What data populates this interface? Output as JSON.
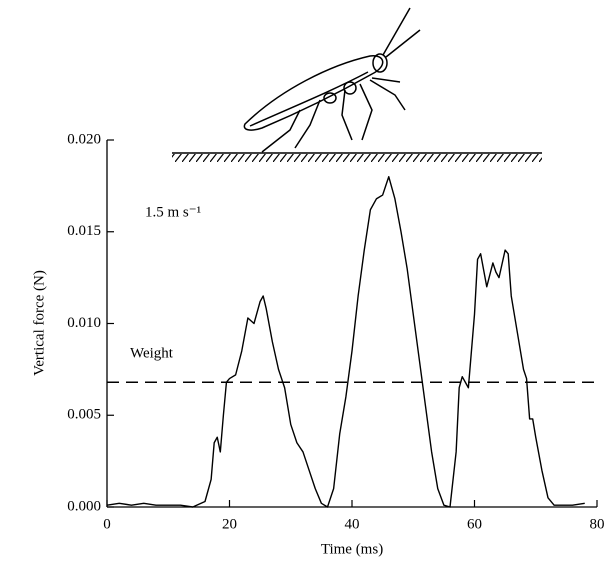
{
  "chart_data": {
    "type": "line",
    "x_label": "Time (ms)",
    "y_label": "Vertical force (N)",
    "annotation": "1.5 m s⁻¹",
    "reference_line": {
      "label": "Weight",
      "value": 0.0068
    },
    "x": [
      0,
      2,
      4,
      6,
      8,
      10,
      12,
      14,
      16,
      17,
      17.5,
      18,
      18.5,
      19,
      19.5,
      20,
      21,
      22,
      23,
      24,
      25,
      25.5,
      26,
      27,
      28,
      29,
      30,
      31,
      32,
      33,
      34,
      35,
      36,
      37,
      38,
      39,
      40,
      41,
      42,
      43,
      44,
      45,
      45.5,
      46,
      47,
      48,
      49,
      50,
      51,
      52,
      53,
      54,
      55,
      56,
      57,
      57.5,
      58,
      59,
      60,
      60.5,
      61,
      62,
      63,
      63.5,
      64,
      65,
      65.5,
      66,
      67,
      68,
      68.5,
      69,
      69.5,
      70,
      71,
      72,
      73,
      76,
      78
    ],
    "series": [
      {
        "color": "#000000",
        "values": [
          0.0001,
          0.0002,
          0.0001,
          0.0002,
          0.0001,
          0.0001,
          0.0001,
          0.0,
          0.0003,
          0.0015,
          0.0035,
          0.0038,
          0.003,
          0.005,
          0.0068,
          0.007,
          0.0072,
          0.0085,
          0.0103,
          0.01,
          0.0112,
          0.0115,
          0.0108,
          0.009,
          0.0075,
          0.0065,
          0.0045,
          0.0035,
          0.003,
          0.002,
          0.001,
          0.0002,
          0.0,
          0.001,
          0.004,
          0.006,
          0.0085,
          0.0115,
          0.014,
          0.0162,
          0.0168,
          0.017,
          0.0175,
          0.018,
          0.0168,
          0.015,
          0.013,
          0.0105,
          0.008,
          0.0055,
          0.003,
          0.001,
          0.0001,
          0.0,
          0.003,
          0.0065,
          0.0071,
          0.0065,
          0.0105,
          0.0135,
          0.0138,
          0.012,
          0.0133,
          0.0128,
          0.0125,
          0.014,
          0.0138,
          0.0115,
          0.0095,
          0.0075,
          0.007,
          0.0048,
          0.0048,
          0.0038,
          0.002,
          0.0005,
          0.0001,
          0.0001,
          0.0002
        ]
      }
    ],
    "xlim": [
      0,
      80
    ],
    "xticks": [
      0,
      20,
      40,
      60,
      80
    ],
    "ylim": [
      0,
      0.02
    ],
    "yticks": [
      {
        "value": 0,
        "label": "0.000"
      },
      {
        "value": 0.005,
        "label": "0.005"
      },
      {
        "value": 0.01,
        "label": "0.010"
      },
      {
        "value": 0.015,
        "label": "0.015"
      },
      {
        "value": 0.02,
        "label": "0.020"
      }
    ]
  }
}
